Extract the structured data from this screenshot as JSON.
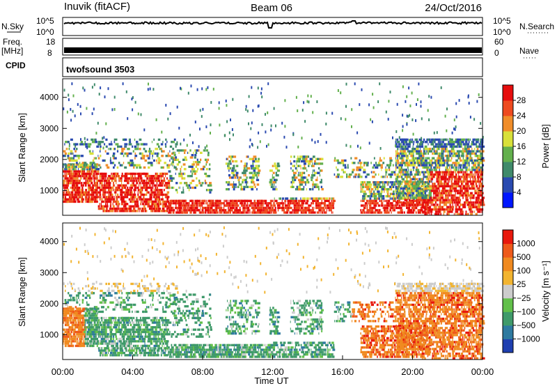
{
  "header": {
    "station": "Inuvik (fitACF)",
    "beam": "Beam 06",
    "date": "24/Oct/2016"
  },
  "panels": {
    "nsky": {
      "left_label": "N.Sky",
      "right_label": "N.Search",
      "tick_top": "10^5",
      "tick_bottom": "10^0",
      "right_tick_top": "10^5",
      "right_tick_bottom": "10^0"
    },
    "freq": {
      "left_label_1": "Freq.",
      "left_label_2": "[MHz]",
      "tick_top": "18",
      "tick_bottom": "8",
      "right_label": "Nave",
      "right_tick_top": "60",
      "right_tick_bottom": "0"
    },
    "cpid": {
      "left_label": "CPID",
      "value": "twofsound 3503"
    }
  },
  "chart_data": [
    {
      "type": "heatmap",
      "title": "Power",
      "ylabel": "Slant Range [km]",
      "xlabel": "",
      "y_ticks": [
        "1000",
        "2000",
        "3000",
        "4000"
      ],
      "ylim": [
        200,
        4600
      ],
      "xlim_hours": [
        0,
        24
      ],
      "colorbar": {
        "label": "Power [dB]",
        "ticks": [
          "4",
          "8",
          "12",
          "16",
          "20",
          "24",
          "28"
        ],
        "colors": [
          "#0016ff",
          "#2a4ab0",
          "#3f8a6a",
          "#63b04d",
          "#d8e03a",
          "#f08d2a",
          "#ee4a1f",
          "#e60d0d"
        ]
      }
    },
    {
      "type": "heatmap",
      "title": "Velocity",
      "ylabel": "Slant Range [km]",
      "xlabel": "Time UT",
      "y_ticks": [
        "1000",
        "2000",
        "3000",
        "4000"
      ],
      "ylim": [
        200,
        4600
      ],
      "xlim_hours": [
        0,
        24
      ],
      "x_ticks": [
        "00:00",
        "04:00",
        "08:00",
        "12:00",
        "16:00",
        "20:00",
        "00:00"
      ],
      "colorbar": {
        "label": "Velocity [m s⁻¹]",
        "ticks": [
          "1000",
          "500",
          "100",
          "25",
          "−25",
          "−100",
          "−500",
          "−1000"
        ],
        "colors": [
          "#1f3fb0",
          "#2e7aa0",
          "#3f9a6a",
          "#62c04a",
          "#cccccc",
          "#f2b430",
          "#f08a20",
          "#ee5a1a",
          "#e8180c"
        ]
      }
    }
  ]
}
